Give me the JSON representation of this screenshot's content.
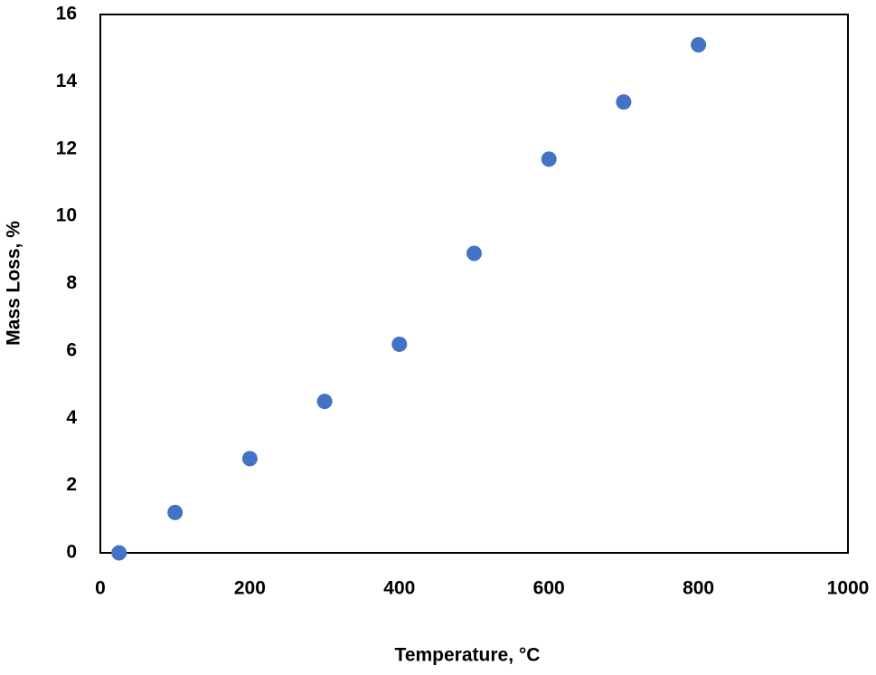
{
  "chart_data": {
    "type": "scatter",
    "x_label": "Temperature, °C",
    "y_label": "Mass Loss, %",
    "series": [
      {
        "color": "#4472c4",
        "x": [
          25,
          100,
          200,
          300,
          400,
          500,
          600,
          700,
          800
        ],
        "values": [
          0,
          1.2,
          2.8,
          4.5,
          6.2,
          8.9,
          11.7,
          13.4,
          15.1
        ]
      }
    ],
    "xlim": [
      0,
      1000
    ],
    "xticks": [
      0,
      200,
      400,
      600,
      800,
      1000
    ],
    "ylim": [
      0,
      16
    ],
    "yticks": [
      0,
      2,
      4,
      6,
      8,
      10,
      12,
      14,
      16
    ],
    "grid": false
  }
}
